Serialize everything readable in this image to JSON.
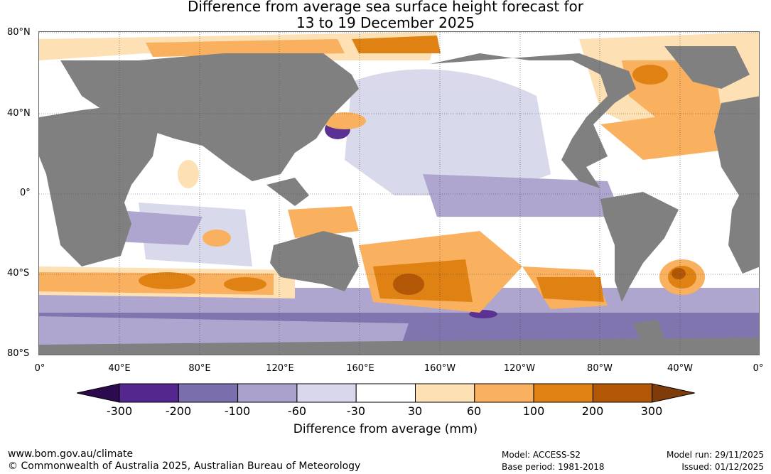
{
  "title": {
    "line1": "Difference from average sea surface height forecast for",
    "line2": "13 to 19 December 2025"
  },
  "map": {
    "lat_labels": [
      "80°N",
      "40°N",
      "0°",
      "40°S",
      "80°S"
    ],
    "lon_labels": [
      "0°",
      "40°E",
      "80°E",
      "120°E",
      "160°E",
      "160°W",
      "120°W",
      "80°W",
      "40°W",
      "0°"
    ],
    "land_color": "#808080",
    "grid_color": "#444444"
  },
  "colorbar": {
    "title": "Difference from average (mm)",
    "tick_labels": [
      "-300",
      "-200",
      "-100",
      "-60",
      "-30",
      "30",
      "60",
      "100",
      "200",
      "300"
    ],
    "colors": [
      "#2d0a4e",
      "#54278f",
      "#7b6eac",
      "#aaa2cd",
      "#d8d7eb",
      "#ffffff",
      "#fde0b3",
      "#f9b05f",
      "#e08113",
      "#b15706",
      "#7f3b08"
    ]
  },
  "footer": {
    "url": "www.bom.gov.au/climate",
    "copyright": "© Commonwealth of Australia 2025, Australian Bureau of Meteorology",
    "model": "Model: ACCESS-S2",
    "base_period": "Base period: 1981-2018",
    "model_run": "Model run: 29/11/2025",
    "issued": "Issued: 01/12/2025"
  }
}
